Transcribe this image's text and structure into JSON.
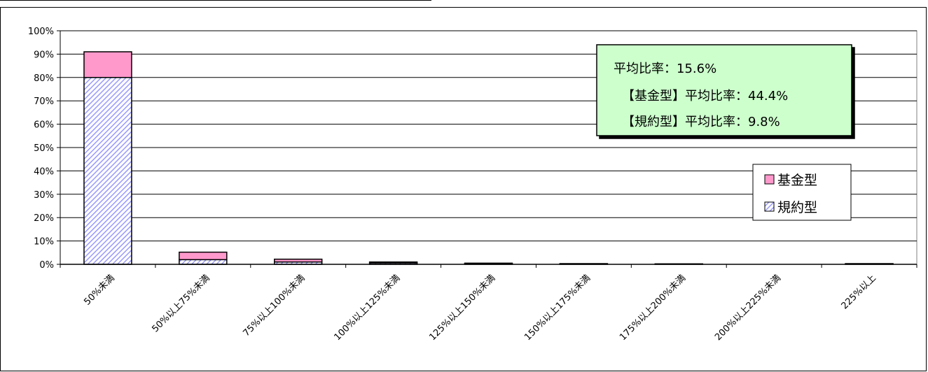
{
  "chart_data": {
    "type": "bar",
    "stacked": true,
    "categories": [
      "50%未満",
      "50%以上75%未満",
      "75%以上100%未満",
      "100%以上125%未満",
      "125%以上150%未満",
      "150%以上175%未満",
      "175%以上200%未満",
      "200%以上225%未満",
      "225%以上"
    ],
    "series": [
      {
        "name": "規約型",
        "values": [
          80.0,
          2.0,
          1.0,
          0.6,
          0.3,
          0.2,
          0.1,
          0.0,
          0.2
        ],
        "color": "#9999ff",
        "pattern": "diagonal-hatch"
      },
      {
        "name": "基金型",
        "values": [
          11.0,
          3.2,
          1.2,
          0.4,
          0.2,
          0.1,
          0.1,
          0.0,
          0.1
        ],
        "color": "#ff99cc"
      }
    ],
    "yticks": [
      "0%",
      "10%",
      "20%",
      "30%",
      "40%",
      "50%",
      "60%",
      "70%",
      "80%",
      "90%",
      "100%"
    ],
    "ylim": [
      0,
      100
    ],
    "grid": true,
    "legend_position": "right",
    "annotations": [
      "平均比率：15.6%",
      "【基金型】平均比率：44.4%",
      "【規約型】平均比率：9.8%"
    ],
    "title": "",
    "xlabel": "",
    "ylabel": ""
  }
}
